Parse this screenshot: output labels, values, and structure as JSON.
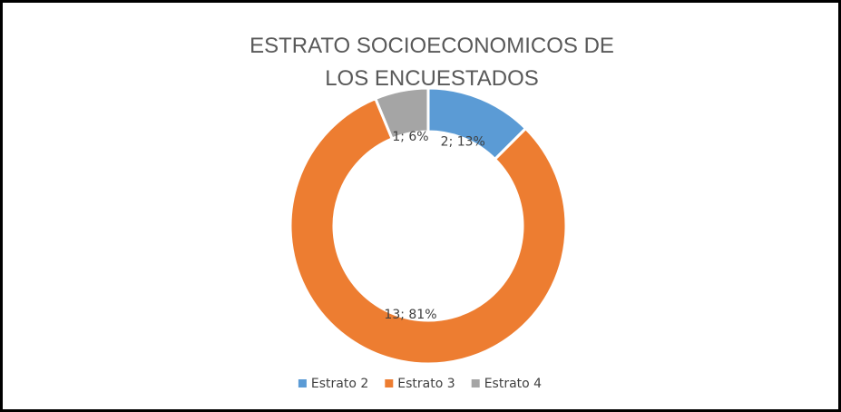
{
  "chart_data": {
    "type": "donut",
    "title": "ESTRATO SOCIOECONOMICOS DE LOS ENCUESTADOS",
    "categories": [
      "Estrato 2",
      "Estrato 3",
      "Estrato 4"
    ],
    "values": [
      2,
      13,
      1
    ],
    "value_labels": [
      "2; 13%",
      "13; 81%",
      "1; 6%"
    ],
    "colors": [
      "#5b9bd5",
      "#ed7d31",
      "#a5a5a5"
    ],
    "legend": "bottom"
  }
}
